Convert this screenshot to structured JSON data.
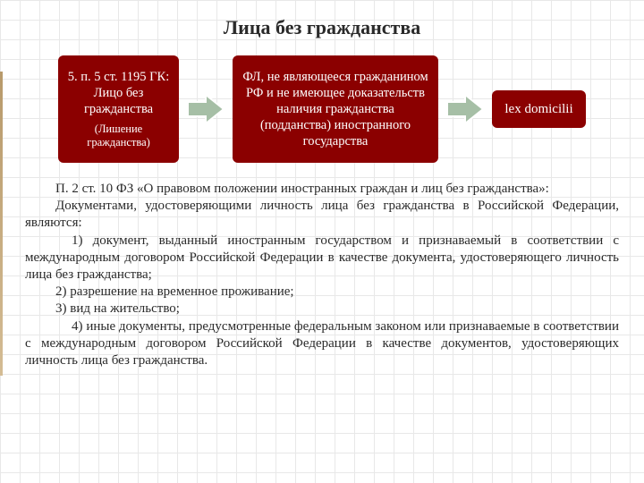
{
  "title": {
    "text": "Лица без гражданства",
    "fontsize": 22
  },
  "flow": {
    "box1": {
      "line_a": "5. п. 5 ст. 1195 ГК: Лицо без гражданства",
      "line_b": "(Лишение гражданства)",
      "bg": "#8b0000",
      "fg": "#ffffff"
    },
    "box2": {
      "text": "ФЛ, не являющееся гражданином РФ и не имеющее доказательств наличия гражданства (подданства) иностранного государства",
      "bg": "#8b0000",
      "fg": "#ffffff"
    },
    "box3": {
      "text": "lex domicilii",
      "bg": "#8b0000",
      "fg": "#ffffff"
    },
    "arrow_color": "#a6bfa6",
    "arrow_stroke": "#ffffff"
  },
  "body": {
    "fontsize": 15,
    "paragraphs": [
      {
        "cls": "indent1",
        "text": "П. 2 ст. 10 ФЗ «О правовом положении иностранных граждан и лиц без гражданства»:"
      },
      {
        "cls": "indent1",
        "text": "Документами, удостоверяющими личность лица без гражданства в Российской Федерации, являются:"
      },
      {
        "cls": "indent2",
        "text": "1) документ, выданный иностранным государством и признаваемый в соответствии с международным договором Российской Федерации в качестве документа, удостоверяющего личность лица без гражданства;"
      },
      {
        "cls": "indent1",
        "text": "2) разрешение на временное проживание;"
      },
      {
        "cls": "indent1",
        "text": "3) вид на жительство;"
      },
      {
        "cls": "indent2",
        "text": "4) иные документы, предусмотренные федеральным законом или признаваемые в соответствии с международным договором Российской Федерации в качестве документов, удостоверяющих личность лица без гражданства."
      }
    ]
  },
  "background": {
    "page_bg": "#ffffff",
    "grid_color": "#e8e8e8",
    "grid_size": 22,
    "accent_bar": "#c9ae82"
  }
}
